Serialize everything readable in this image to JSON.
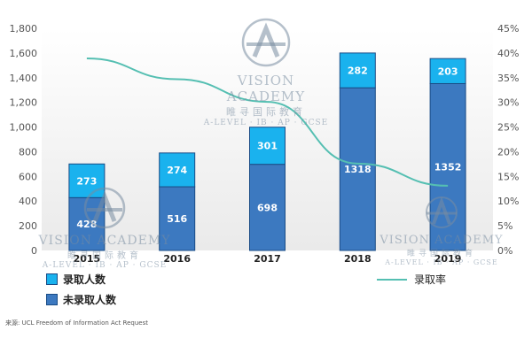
{
  "chart_data": {
    "type": "bar+line",
    "categories": [
      "2015",
      "2016",
      "2017",
      "2018",
      "2019"
    ],
    "stacked": true,
    "series": [
      {
        "name": "未录取人数",
        "values": [
          428,
          516,
          698,
          1318,
          1352
        ],
        "color": "#3c79c0",
        "axis": "left"
      },
      {
        "name": "录取人数",
        "values": [
          273,
          274,
          301,
          282,
          203
        ],
        "color": "#1ab2ee",
        "axis": "left"
      },
      {
        "name": "录取率",
        "type": "line",
        "values": [
          0.389,
          0.347,
          0.301,
          0.176,
          0.131
        ],
        "color": "#55bfb2",
        "axis": "right"
      }
    ],
    "ylim": [
      0,
      1800
    ],
    "y_ticks": [
      "0",
      "200",
      "400",
      "600",
      "800",
      "1,000",
      "1,200",
      "1,400",
      "1,600",
      "1,800"
    ],
    "y2lim": [
      0,
      0.45
    ],
    "y2_ticks": [
      "0%",
      "5%",
      "10%",
      "15%",
      "20%",
      "25%",
      "30%",
      "35%",
      "40%",
      "45%"
    ],
    "grid": false,
    "legend": "bottom"
  },
  "legend": {
    "admit": "录取人数",
    "nonadmit": "未录取人数",
    "rate": "录取率"
  },
  "source": "来源:  UCL Freedom of Information Act Request",
  "watermark": {
    "name": "VISION ACADEMY",
    "chinese": "睢寻国际教育",
    "subtitle": "A-LEVEL · IB · AP · GCSE"
  }
}
